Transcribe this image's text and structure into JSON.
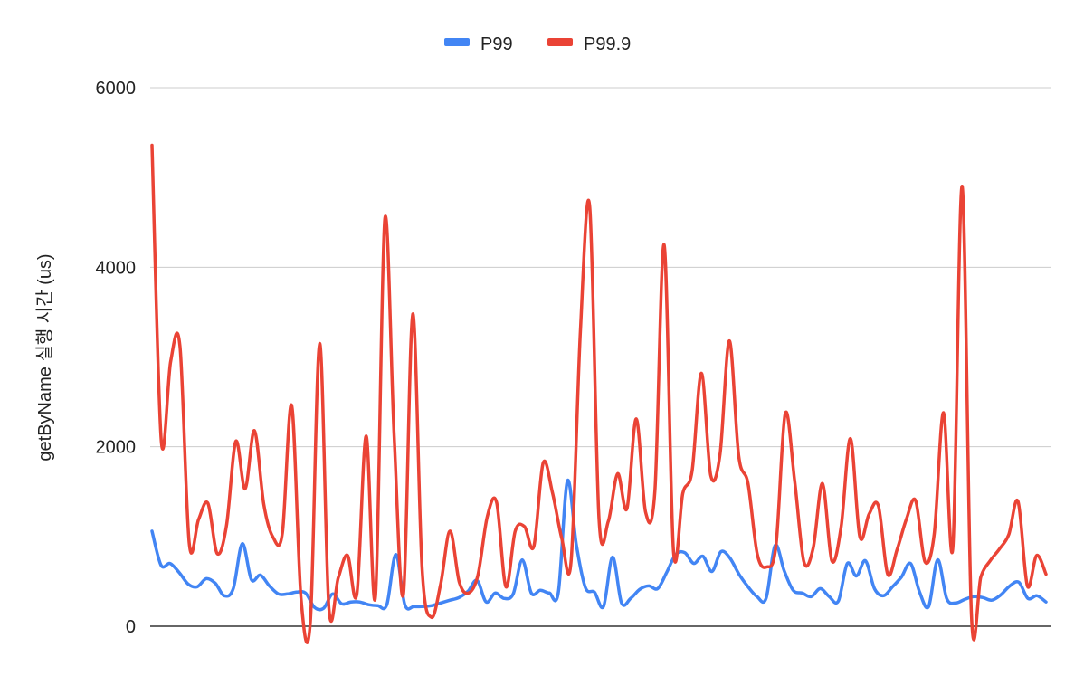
{
  "chart_data": {
    "type": "line",
    "title": "",
    "xlabel": "",
    "ylabel": "getByName 실행 시간 (us)",
    "ylim": [
      0,
      6000
    ],
    "yticks": [
      "0",
      "2000",
      "4000",
      "6000"
    ],
    "grid": true,
    "legend_position": "top-center",
    "series": [
      {
        "name": "P99",
        "color": "#4285F4",
        "values": [
          1060,
          680,
          700,
          600,
          470,
          440,
          530,
          480,
          340,
          420,
          920,
          520,
          570,
          450,
          360,
          360,
          380,
          370,
          210,
          200,
          360,
          250,
          270,
          270,
          240,
          230,
          240,
          800,
          240,
          220,
          220,
          230,
          260,
          290,
          320,
          390,
          510,
          270,
          370,
          310,
          360,
          740,
          370,
          400,
          370,
          380,
          1620,
          900,
          430,
          380,
          220,
          770,
          260,
          310,
          410,
          450,
          420,
          600,
          800,
          820,
          700,
          780,
          610,
          830,
          760,
          580,
          440,
          330,
          310,
          900,
          620,
          400,
          370,
          330,
          420,
          330,
          280,
          700,
          560,
          730,
          420,
          340,
          440,
          550,
          700,
          380,
          220,
          740,
          310,
          260,
          300,
          330,
          320,
          290,
          350,
          450,
          490,
          310,
          340,
          270
        ]
      },
      {
        "name": "P99.9",
        "color": "#EA4335",
        "values": [
          5360,
          2060,
          2950,
          3120,
          920,
          1190,
          1370,
          810,
          1120,
          2060,
          1530,
          2180,
          1360,
          990,
          1040,
          2460,
          310,
          50,
          3150,
          200,
          540,
          790,
          360,
          2120,
          340,
          4540,
          2120,
          360,
          3480,
          640,
          100,
          470,
          1060,
          490,
          370,
          570,
          1220,
          1380,
          440,
          1060,
          1110,
          890,
          1820,
          1490,
          980,
          720,
          3280,
          4680,
          1200,
          1170,
          1700,
          1310,
          2310,
          1270,
          1510,
          4250,
          840,
          1480,
          1730,
          2820,
          1680,
          1920,
          3180,
          1900,
          1590,
          800,
          660,
          890,
          2370,
          1630,
          720,
          870,
          1590,
          730,
          1110,
          2090,
          1000,
          1250,
          1340,
          580,
          850,
          1190,
          1400,
          720,
          1030,
          2380,
          880,
          4900,
          100,
          550,
          730,
          860,
          1020,
          1390,
          450,
          790,
          580
        ]
      }
    ]
  }
}
